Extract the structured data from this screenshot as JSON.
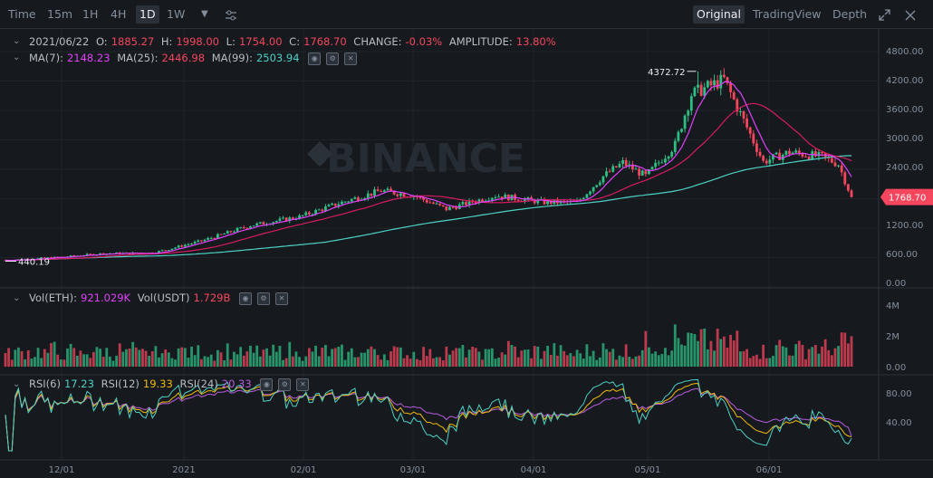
{
  "toolbar": {
    "intervals": [
      "Time",
      "15m",
      "1H",
      "4H",
      "1D",
      "1W"
    ],
    "active_interval": "1D",
    "views": [
      "Original",
      "TradingView",
      "Depth"
    ],
    "active_view": "Original",
    "more_icon": "caret-down-icon",
    "settings_icon": "sliders-icon",
    "expand_icon": "expand-icon",
    "close_icon": "close-icon"
  },
  "legend": {
    "date": "2021/06/22",
    "open_label": "O:",
    "open": "1885.27",
    "high_label": "H:",
    "high": "1998.00",
    "low_label": "L:",
    "low": "1754.00",
    "close_label": "C:",
    "close": "1768.70",
    "change_label": "CHANGE:",
    "change": "-0.03%",
    "amp_label": "AMPLITUDE:",
    "amp": "13.80%",
    "ma7_label": "MA(7):",
    "ma7": "2148.23",
    "ma25_label": "MA(25):",
    "ma25": "2446.98",
    "ma99_label": "MA(99):",
    "ma99": "2503.94",
    "vol_label": "Vol(ETH):",
    "vol": "921.029K",
    "volu_label": "Vol(USDT)",
    "volu": "1.729B",
    "rsi6_label": "RSI(6)",
    "rsi6": "17.23",
    "rsi12_label": "RSI(12)",
    "rsi12": "19.33",
    "rsi24_label": "RSI(24)",
    "rsi24": "20.33"
  },
  "watermark": "BINANCE",
  "colors": {
    "up": "#2ebd85",
    "down": "#f6465d",
    "ma7": "#e040fb",
    "ma25": "#d81b60",
    "ma99": "#4dd0c4",
    "rsi6": "#4dd0c4",
    "rsi12": "#f0b90b",
    "rsi24": "#b85cdf",
    "bg": "#161a1e",
    "grid": "#1f242b"
  },
  "chart_data": {
    "type": "candlestick",
    "price_axis": {
      "ticks": [
        "4800.00",
        "4200.00",
        "3600.00",
        "3000.00",
        "2400.00",
        "1800.00",
        "1200.00",
        "600.00",
        "0.00"
      ],
      "range": [
        0,
        4800
      ]
    },
    "volume_axis": {
      "ticks": [
        "4M",
        "2M",
        "0.00"
      ],
      "range": [
        0,
        4000000
      ]
    },
    "rsi_axis": {
      "ticks": [
        "80.00",
        "40.00"
      ],
      "range": [
        0,
        100
      ]
    },
    "time_ticks": [
      "12/01",
      "2021",
      "02/01",
      "03/01",
      "04/01",
      "05/01",
      "06/01"
    ],
    "high_marker": "4372.72",
    "low_marker": "440.19",
    "last_price": "1768.70",
    "key_points": {
      "days": [
        0,
        16,
        30,
        45,
        60,
        75,
        90,
        103,
        115,
        125,
        135,
        150,
        165,
        175,
        183,
        189,
        196,
        205,
        210,
        220,
        232,
        240,
        250,
        255,
        259
      ],
      "close": [
        460,
        520,
        600,
        610,
        860,
        1180,
        1360,
        1660,
        1900,
        1800,
        1520,
        1800,
        1660,
        1660,
        2200,
        2480,
        2200,
        2850,
        3900,
        4200,
        2500,
        2700,
        2600,
        2450,
        1768.7
      ]
    }
  }
}
